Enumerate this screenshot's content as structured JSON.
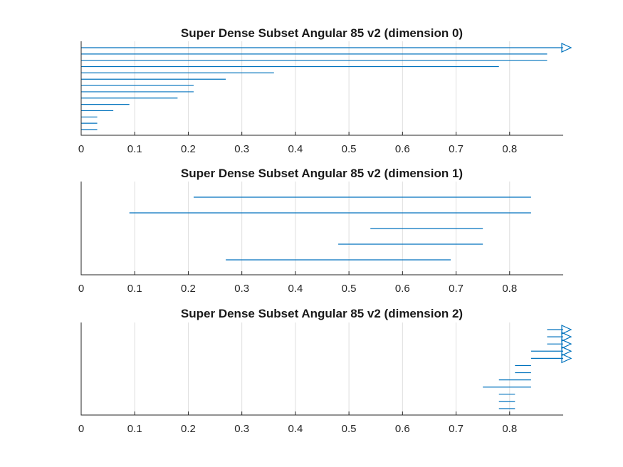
{
  "style": {
    "series_color": "#0072BD",
    "axis_color": "#262626",
    "grid_color": "#dedede"
  },
  "chart_data": [
    {
      "type": "bar",
      "orientation": "horizontal-range",
      "title": "Super Dense Subset Angular 85 v2 (dimension 0)",
      "xlim": [
        0,
        0.9
      ],
      "xticks": [
        "0",
        "0.1",
        "0.2",
        "0.3",
        "0.4",
        "0.5",
        "0.6",
        "0.7",
        "0.8"
      ],
      "grid": "vertical",
      "rows": 14,
      "segments": [
        {
          "start": 0,
          "end": 0.9,
          "arrow": true
        },
        {
          "start": 0,
          "end": 0.87,
          "arrow": false
        },
        {
          "start": 0,
          "end": 0.87,
          "arrow": false
        },
        {
          "start": 0,
          "end": 0.78,
          "arrow": false
        },
        {
          "start": 0,
          "end": 0.36,
          "arrow": false
        },
        {
          "start": 0,
          "end": 0.27,
          "arrow": false
        },
        {
          "start": 0,
          "end": 0.21,
          "arrow": false
        },
        {
          "start": 0,
          "end": 0.21,
          "arrow": false
        },
        {
          "start": 0,
          "end": 0.18,
          "arrow": false
        },
        {
          "start": 0,
          "end": 0.09,
          "arrow": false
        },
        {
          "start": 0,
          "end": 0.06,
          "arrow": false
        },
        {
          "start": 0,
          "end": 0.03,
          "arrow": false
        },
        {
          "start": 0,
          "end": 0.03,
          "arrow": false
        },
        {
          "start": 0,
          "end": 0.03,
          "arrow": false
        }
      ]
    },
    {
      "type": "bar",
      "orientation": "horizontal-range",
      "title": "Super Dense Subset Angular 85 v2 (dimension 1)",
      "xlim": [
        0,
        0.9
      ],
      "xticks": [
        "0",
        "0.1",
        "0.2",
        "0.3",
        "0.4",
        "0.5",
        "0.6",
        "0.7",
        "0.8"
      ],
      "grid": "vertical",
      "rows": 5,
      "segments": [
        {
          "start": 0.21,
          "end": 0.84,
          "arrow": false
        },
        {
          "start": 0.09,
          "end": 0.84,
          "arrow": false
        },
        {
          "start": 0.54,
          "end": 0.75,
          "arrow": false
        },
        {
          "start": 0.48,
          "end": 0.75,
          "arrow": false
        },
        {
          "start": 0.27,
          "end": 0.69,
          "arrow": false
        }
      ]
    },
    {
      "type": "bar",
      "orientation": "horizontal-range",
      "title": "Super Dense Subset Angular 85 v2 (dimension 2)",
      "xlim": [
        0,
        0.9
      ],
      "xticks": [
        "0",
        "0.1",
        "0.2",
        "0.3",
        "0.4",
        "0.5",
        "0.6",
        "0.7",
        "0.8"
      ],
      "grid": "vertical",
      "rows": 12,
      "segments": [
        {
          "start": 0.87,
          "end": 0.9,
          "arrow": true
        },
        {
          "start": 0.87,
          "end": 0.9,
          "arrow": true
        },
        {
          "start": 0.87,
          "end": 0.9,
          "arrow": true
        },
        {
          "start": 0.84,
          "end": 0.9,
          "arrow": true
        },
        {
          "start": 0.84,
          "end": 0.9,
          "arrow": true
        },
        {
          "start": 0.81,
          "end": 0.84,
          "arrow": false
        },
        {
          "start": 0.81,
          "end": 0.84,
          "arrow": false
        },
        {
          "start": 0.78,
          "end": 0.84,
          "arrow": false
        },
        {
          "start": 0.75,
          "end": 0.84,
          "arrow": false
        },
        {
          "start": 0.78,
          "end": 0.81,
          "arrow": false
        },
        {
          "start": 0.78,
          "end": 0.81,
          "arrow": false
        },
        {
          "start": 0.78,
          "end": 0.81,
          "arrow": false
        }
      ]
    }
  ]
}
